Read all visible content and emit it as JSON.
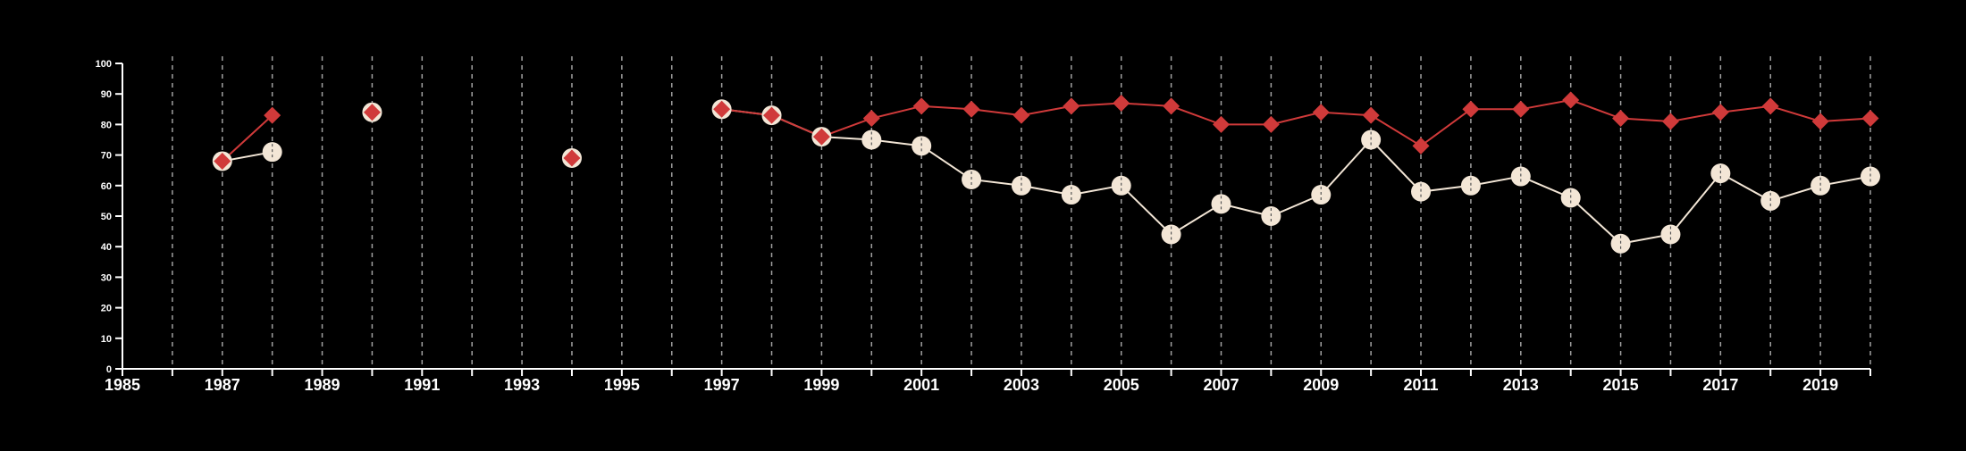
{
  "colors": {
    "background": "#000000",
    "axis": "#ffffff",
    "grid": "#bdbdbd",
    "series_red": "#d03a3a",
    "series_cream": "#f3e6d6"
  },
  "chart_data": {
    "type": "line",
    "title": "",
    "xlabel": "",
    "ylabel": "",
    "xlim": [
      1985,
      2020
    ],
    "ylim": [
      0,
      100
    ],
    "grid": "vertical dashed at each year",
    "legend": "none",
    "x_tick_labels": [
      "1985",
      "1987",
      "1989",
      "1991",
      "1993",
      "1995",
      "1997",
      "1999",
      "2001",
      "2003",
      "2005",
      "2007",
      "2009",
      "2011",
      "2013",
      "2015",
      "2017",
      "2019"
    ],
    "y_tick_labels": [
      "0",
      "10",
      "20",
      "30",
      "40",
      "50",
      "60",
      "70",
      "80",
      "90",
      "100"
    ],
    "series": [
      {
        "color": "#d03a3a",
        "marker": "diamond",
        "points": [
          [
            1987,
            68
          ],
          [
            1988,
            83
          ],
          null,
          [
            1990,
            84
          ],
          null,
          [
            1994,
            69
          ],
          null,
          [
            1997,
            85
          ],
          [
            1998,
            83
          ],
          [
            1999,
            76
          ],
          [
            2000,
            82
          ],
          [
            2001,
            86
          ],
          [
            2002,
            85
          ],
          [
            2003,
            83
          ],
          [
            2004,
            86
          ],
          [
            2005,
            87
          ],
          [
            2006,
            86
          ],
          [
            2007,
            80
          ],
          [
            2008,
            80
          ],
          [
            2009,
            84
          ],
          [
            2010,
            83
          ],
          [
            2011,
            73
          ],
          [
            2012,
            85
          ],
          [
            2013,
            85
          ],
          [
            2014,
            88
          ],
          [
            2015,
            82
          ],
          [
            2016,
            81
          ],
          [
            2017,
            84
          ],
          [
            2018,
            86
          ],
          [
            2019,
            81
          ],
          [
            2020,
            82
          ]
        ]
      },
      {
        "color": "#f3e6d6",
        "marker": "circle",
        "points": [
          [
            1987,
            68
          ],
          [
            1988,
            71
          ],
          null,
          [
            1990,
            84
          ],
          null,
          [
            1994,
            69
          ],
          null,
          [
            1997,
            85
          ],
          [
            1998,
            83
          ],
          [
            1999,
            76
          ],
          [
            2000,
            75
          ],
          [
            2001,
            73
          ],
          [
            2002,
            62
          ],
          [
            2003,
            60
          ],
          [
            2004,
            57
          ],
          [
            2005,
            60
          ],
          [
            2006,
            44
          ],
          [
            2007,
            54
          ],
          [
            2008,
            50
          ],
          [
            2009,
            57
          ],
          [
            2010,
            75
          ],
          [
            2011,
            58
          ],
          [
            2012,
            60
          ],
          [
            2013,
            63
          ],
          [
            2014,
            56
          ],
          [
            2015,
            41
          ],
          [
            2016,
            44
          ],
          [
            2017,
            64
          ],
          [
            2018,
            55
          ],
          [
            2019,
            60
          ],
          [
            2020,
            63
          ]
        ]
      }
    ]
  }
}
